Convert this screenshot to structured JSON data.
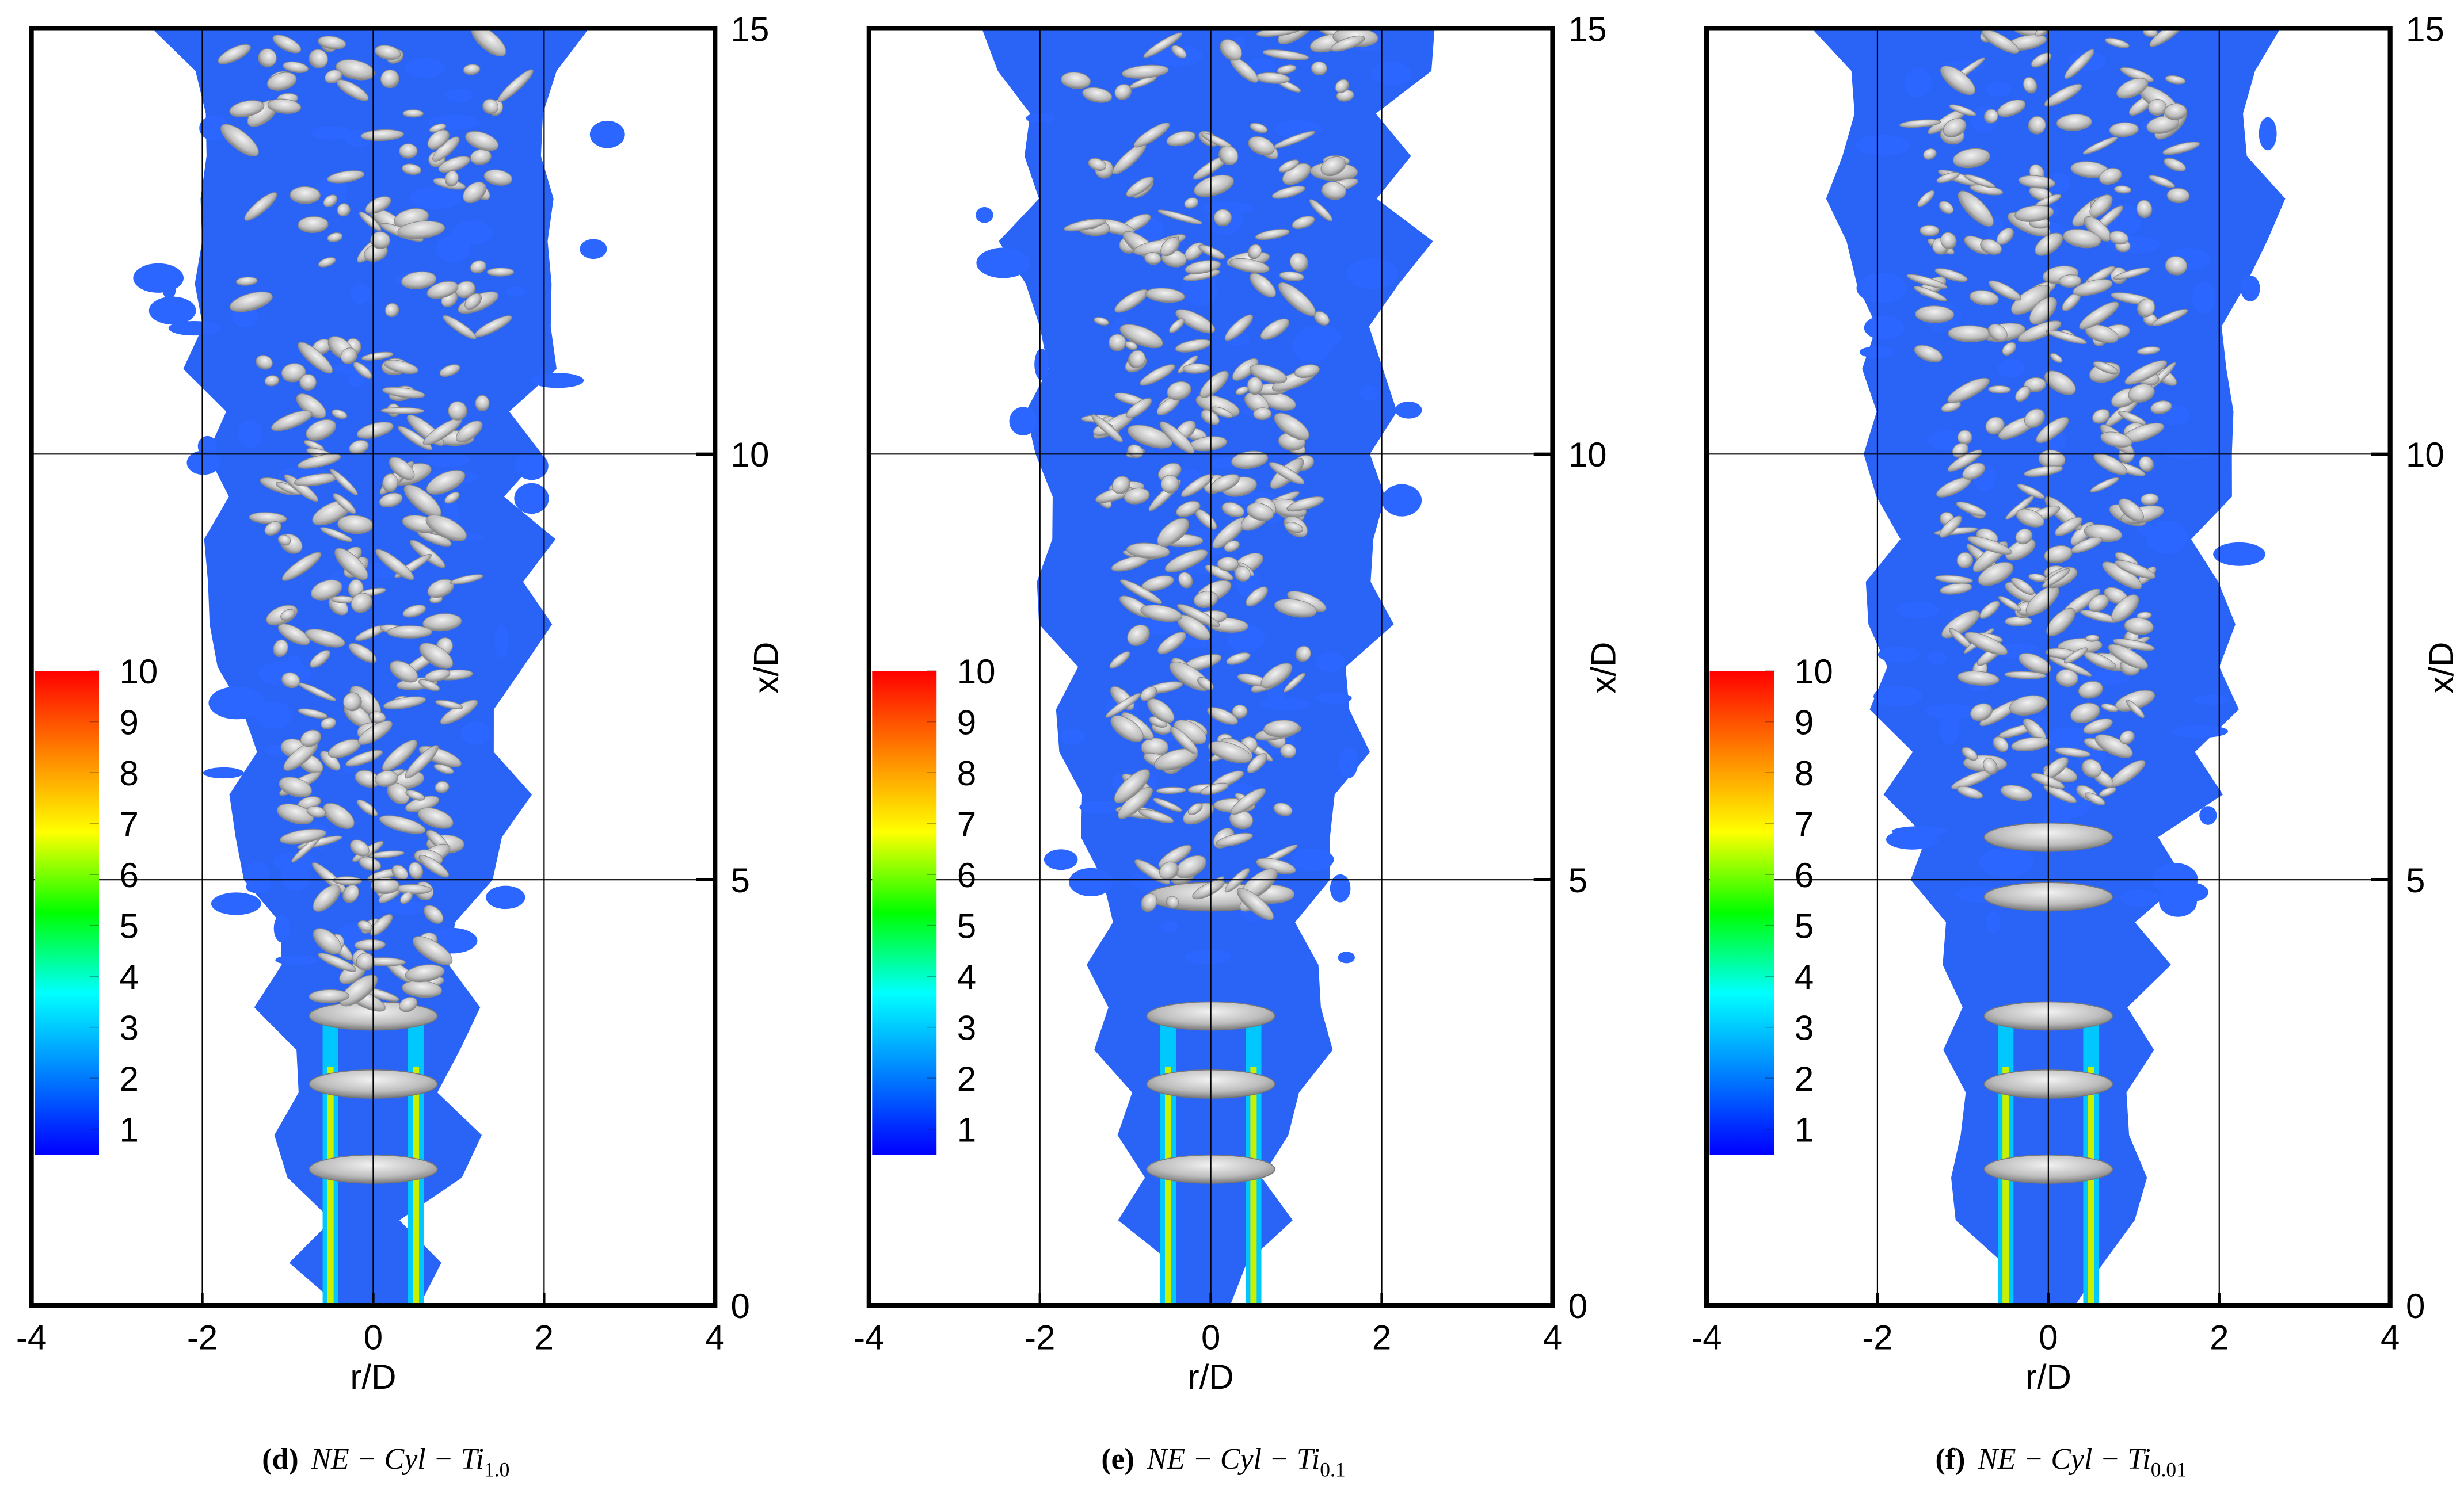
{
  "chart_data": [
    {
      "type": "isosurface",
      "xlabel": "r/D",
      "ylabel": "x/D",
      "xlim": [
        -4,
        4
      ],
      "ylim": [
        0,
        15
      ],
      "xticks": [
        -4,
        -2,
        0,
        2,
        4
      ],
      "yticks": [
        0,
        5,
        10,
        15
      ],
      "grid": true,
      "colorbar_lim": [
        0.5,
        10
      ],
      "colorbar_ticks": [
        1,
        2,
        3,
        4,
        5,
        6,
        7,
        8,
        9,
        10
      ],
      "colormap": [
        "#0000ff",
        "#0080ff",
        "#00ffff",
        "#00ff00",
        "#ffff00",
        "#ff8000",
        "#ff0000"
      ],
      "caption_label": "(d)",
      "caption": "NE − Cyl − Ti",
      "caption_subscript": "1.0"
    },
    {
      "type": "isosurface",
      "xlabel": "r/D",
      "ylabel": "x/D",
      "xlim": [
        -4,
        4
      ],
      "ylim": [
        0,
        15
      ],
      "xticks": [
        -4,
        -2,
        0,
        2,
        4
      ],
      "yticks": [
        0,
        5,
        10,
        15
      ],
      "grid": true,
      "colorbar_lim": [
        0.5,
        10
      ],
      "colorbar_ticks": [
        1,
        2,
        3,
        4,
        5,
        6,
        7,
        8,
        9,
        10
      ],
      "colormap": [
        "#0000ff",
        "#0080ff",
        "#00ffff",
        "#00ff00",
        "#ffff00",
        "#ff8000",
        "#ff0000"
      ],
      "caption_label": "(e)",
      "caption": "NE − Cyl − Ti",
      "caption_subscript": "0.1"
    },
    {
      "type": "isosurface",
      "xlabel": "r/D",
      "ylabel": "x/D",
      "xlim": [
        -4,
        4
      ],
      "ylim": [
        0,
        15
      ],
      "xticks": [
        -4,
        -2,
        0,
        2,
        4
      ],
      "yticks": [
        0,
        5,
        10,
        15
      ],
      "grid": true,
      "colorbar_lim": [
        0.5,
        10
      ],
      "colorbar_ticks": [
        1,
        2,
        3,
        4,
        5,
        6,
        7,
        8,
        9,
        10
      ],
      "colormap": [
        "#0000ff",
        "#0080ff",
        "#00ffff",
        "#00ff00",
        "#ffff00",
        "#ff8000",
        "#ff0000"
      ],
      "caption_label": "(f)",
      "caption": "NE − Cyl − Ti",
      "caption_subscript": "0.01"
    }
  ]
}
